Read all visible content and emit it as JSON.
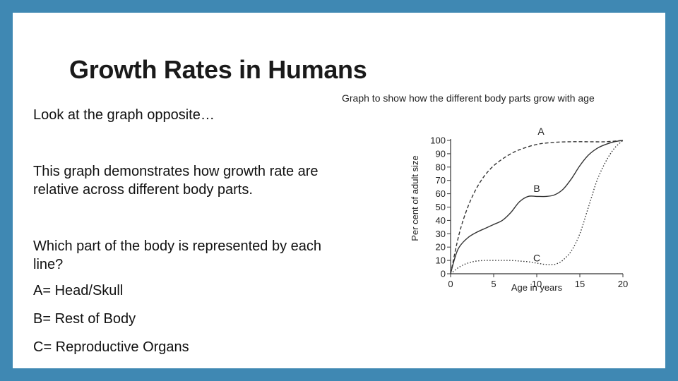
{
  "slide": {
    "title": "Growth Rates in Humans",
    "paragraphs": [
      "Look at the graph opposite…",
      "This graph demonstrates how growth rate are relative across different body parts.",
      "Which part of the body is represented by each line?",
      "A= Head/Skull",
      "B= Rest of Body",
      "C= Reproductive Organs"
    ]
  },
  "colors": {
    "frame": "#3f88b3",
    "background": "#ffffff",
    "line": "#333333"
  },
  "chart_data": {
    "type": "line",
    "title": "Graph to show how the different body parts grow with age",
    "xlabel": "Age in years",
    "ylabel": "Per cent of adult size",
    "xlim": [
      0,
      20
    ],
    "ylim": [
      0,
      100
    ],
    "xticks": [
      0,
      5,
      10,
      15,
      20
    ],
    "yticks": [
      0,
      10,
      20,
      30,
      40,
      50,
      60,
      70,
      80,
      90,
      100
    ],
    "grid": false,
    "series": [
      {
        "name": "A",
        "style": "dashed",
        "x": [
          0,
          1,
          2,
          3,
          4,
          5,
          6,
          7,
          8,
          10,
          12,
          14,
          16,
          18,
          20
        ],
        "y": [
          0,
          30,
          50,
          64,
          74,
          81,
          86,
          90,
          93,
          97,
          98.5,
          99,
          99,
          99,
          100
        ]
      },
      {
        "name": "B",
        "style": "solid",
        "x": [
          0,
          0.5,
          1,
          2,
          3,
          4,
          5,
          6,
          7,
          8,
          9,
          10,
          11,
          12,
          13,
          14,
          15,
          16,
          17,
          18,
          19,
          20
        ],
        "y": [
          0,
          12,
          20,
          27,
          31,
          34,
          37,
          40,
          46,
          54,
          58,
          58,
          58,
          59,
          63,
          71,
          81,
          89,
          94,
          97,
          99,
          100
        ]
      },
      {
        "name": "C",
        "style": "dotted",
        "x": [
          0,
          1,
          2,
          3,
          4,
          5,
          6,
          7,
          8,
          9,
          10,
          11,
          12,
          12.5,
          13,
          14,
          15,
          16,
          17,
          18,
          19,
          20
        ],
        "y": [
          0,
          5,
          8,
          9.5,
          10,
          10,
          10,
          10,
          9.5,
          9,
          8,
          7,
          7,
          8,
          10,
          17,
          30,
          50,
          70,
          84,
          94,
          100
        ]
      }
    ]
  }
}
